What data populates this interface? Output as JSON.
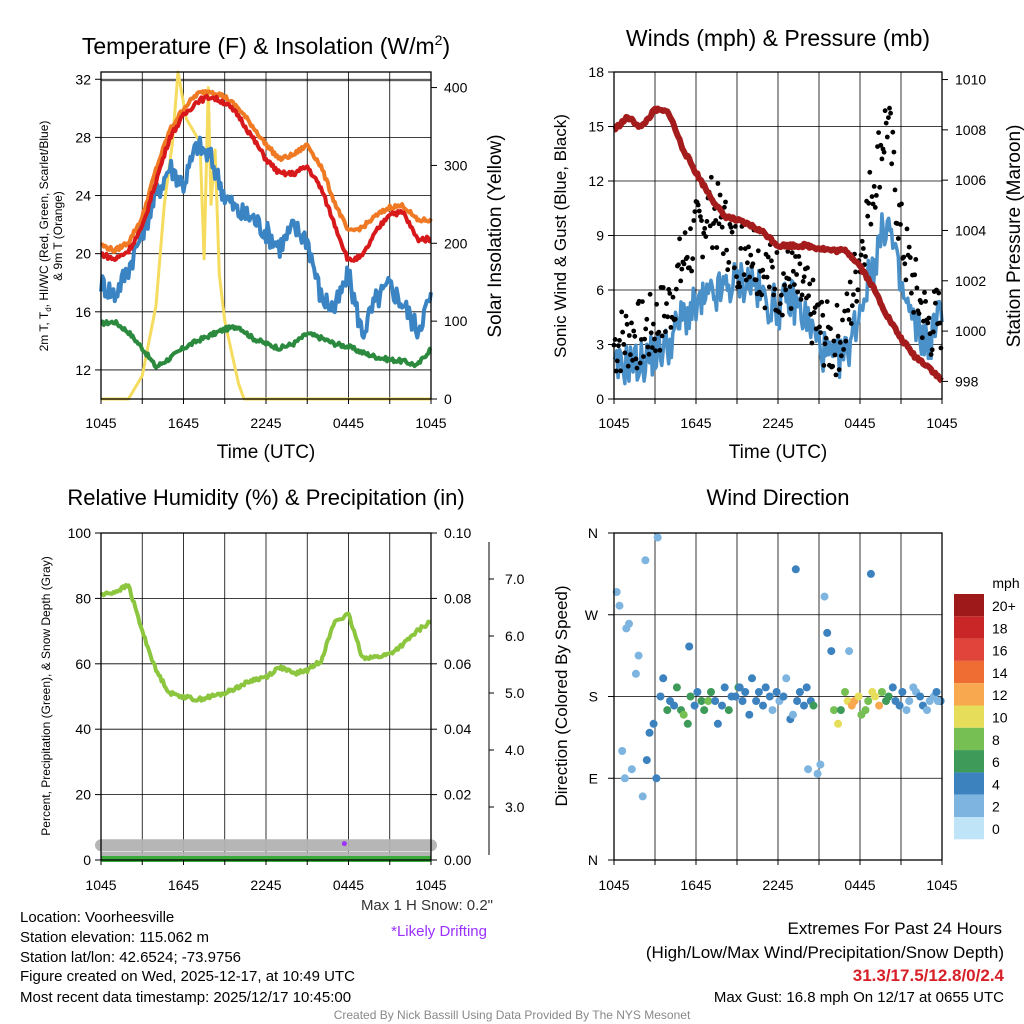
{
  "colors": {
    "temp_2m": "#d7191c",
    "dewpoint": "#2b8a3e",
    "wind_chill": "#3a84c4",
    "temp_9m": "#f07a24",
    "insolation": "#f5dc5e",
    "wind": "#4a90c9",
    "gust": "#000000",
    "pressure": "#a51c1c",
    "rh": "#8cc63f",
    "precip": "#3aab3a",
    "snow": "#b3b3b3",
    "drift": "#9b30ff",
    "extremes": "#d72027",
    "credit": "#888888"
  },
  "chart_data": [
    {
      "type": "line",
      "title": "Temperature (F) & Insolation (W/m²)",
      "title_main": "Temperature (F) & Insolation (W/m",
      "title_sup": "2",
      "title_end": ")",
      "xlabel": "Time (UTC)",
      "ylabel_lines": [
        "2m T, T",
        "d",
        ", HI/WC (Red, Green, Scarlet/Blue)",
        "& 9m T (Orange)"
      ],
      "y2label": "Solar Insolation (Yellow)",
      "x_ticks": [
        "1045",
        "1645",
        "2245",
        "0445",
        "1045"
      ],
      "ylim": [
        10,
        32.5
      ],
      "y_ticks": [
        "12",
        "16",
        "20",
        "24",
        "28",
        "32"
      ],
      "y2lim": [
        0,
        420
      ],
      "y2_ticks": [
        "0",
        "100",
        "200",
        "300",
        "400"
      ],
      "series": [
        {
          "name": "2m T",
          "color": "#d7191c",
          "x": [
            0,
            1,
            2,
            3,
            4,
            5,
            6,
            7,
            8,
            9,
            10,
            11,
            12,
            13,
            14,
            15,
            16,
            17,
            18,
            19,
            20,
            21,
            22,
            23,
            24
          ],
          "values": [
            20,
            19.6,
            20.2,
            21.8,
            25,
            28,
            29.5,
            30.5,
            30.8,
            30.4,
            29.5,
            28,
            26.5,
            25.5,
            25.5,
            26,
            24.5,
            22,
            19.5,
            19.8,
            21.5,
            22.8,
            22.8,
            21,
            21
          ]
        },
        {
          "name": "9m T",
          "color": "#f07a24",
          "x": [
            0,
            1,
            2,
            3,
            4,
            5,
            6,
            7,
            8,
            9,
            10,
            11,
            12,
            13,
            14,
            15,
            16,
            17,
            18,
            19,
            20,
            21,
            22,
            23,
            24
          ],
          "values": [
            20.6,
            20.2,
            20.8,
            22.5,
            25.8,
            28.5,
            30,
            31,
            31.2,
            30.8,
            30,
            28.8,
            27.5,
            26.5,
            26.8,
            27.5,
            26,
            23.5,
            21.5,
            21.8,
            22.6,
            23.2,
            23.3,
            22.3,
            22.3
          ]
        },
        {
          "name": "Dewpoint",
          "color": "#2b8a3e",
          "x": [
            0,
            1,
            2,
            3,
            4,
            5,
            6,
            7,
            8,
            9,
            10,
            11,
            12,
            13,
            14,
            15,
            16,
            17,
            18,
            19,
            20,
            21,
            22,
            23,
            24
          ],
          "values": [
            15.2,
            15.3,
            14.6,
            13.5,
            12.2,
            12.8,
            13.5,
            14,
            14.4,
            14.8,
            15,
            14.2,
            13.8,
            13.5,
            13.8,
            14.5,
            14.2,
            13.8,
            13.6,
            13.2,
            12.9,
            12.7,
            12.6,
            12.3,
            13.5
          ]
        },
        {
          "name": "HI/WC",
          "color": "#3a84c4",
          "x": [
            0,
            1,
            2,
            3,
            4,
            5,
            6,
            7,
            8,
            9,
            10,
            11,
            12,
            13,
            14,
            15,
            16,
            17,
            18,
            19,
            20,
            21,
            22,
            23,
            24
          ],
          "values": [
            18,
            17.2,
            19,
            21.5,
            24,
            26,
            24.8,
            27.5,
            26.5,
            24,
            22.8,
            22.5,
            21.5,
            20.5,
            21.8,
            21,
            17,
            16.2,
            18.5,
            14.5,
            16.8,
            17.8,
            16.5,
            14.8,
            17
          ]
        },
        {
          "name": "Insolation",
          "color": "#f5dc5e",
          "axis": "y2",
          "x": [
            0,
            1.5,
            2,
            3,
            4,
            4.6,
            5.2,
            5.6,
            6.2,
            7.2,
            7.5,
            7.8,
            8,
            8.3,
            8.6,
            9,
            9.5,
            10,
            10.4,
            24
          ],
          "values": [
            0,
            0,
            0,
            30,
            120,
            250,
            330,
            420,
            360,
            330,
            180,
            400,
            250,
            320,
            160,
            100,
            60,
            20,
            0,
            0
          ]
        }
      ]
    },
    {
      "type": "line",
      "title": "Winds (mph) & Pressure (mb)",
      "xlabel": "Time (UTC)",
      "ylabel": "Sonic Wind & Gust (Blue, Black)",
      "y2label": "Station Pressure (Maroon)",
      "x_ticks": [
        "1045",
        "1645",
        "2245",
        "0445",
        "1045"
      ],
      "ylim": [
        0,
        18
      ],
      "y_ticks": [
        "0",
        "3",
        "6",
        "9",
        "12",
        "15",
        "18"
      ],
      "y2lim": [
        997.3,
        1010.3
      ],
      "y2_ticks": [
        "998",
        "1000",
        "1002",
        "1004",
        "1006",
        "1008",
        "1010"
      ],
      "series": [
        {
          "name": "Sonic Wind",
          "color": "#4a90c9",
          "x": [
            0,
            1,
            2,
            3,
            4,
            5,
            6,
            7,
            8,
            9,
            10,
            11,
            12,
            13,
            14,
            15,
            16,
            17,
            18,
            19,
            20,
            21,
            22,
            23,
            24
          ],
          "values": [
            1.5,
            2,
            2,
            2.5,
            3,
            4.5,
            5,
            5.5,
            6,
            6.5,
            6.5,
            5.5,
            5,
            5.5,
            4.5,
            3,
            2,
            2.5,
            5,
            7.5,
            10,
            6,
            4,
            3,
            5
          ]
        },
        {
          "name": "Gust",
          "color": "#000000",
          "markers": true,
          "x": [
            0,
            1,
            2,
            3,
            4,
            5,
            6,
            7,
            8,
            9,
            10,
            11,
            12,
            13,
            14,
            15,
            16,
            17,
            18,
            19,
            20,
            21,
            22,
            23,
            24
          ],
          "values": [
            3,
            3.5,
            3.5,
            4,
            5,
            7.5,
            9,
            10.5,
            9.5,
            8,
            8.5,
            7,
            6.5,
            6.5,
            5.5,
            4,
            3,
            4,
            8,
            12,
            15.5,
            9,
            6,
            4,
            4.5
          ]
        },
        {
          "name": "Pressure",
          "color": "#a51c1c",
          "axis": "y2",
          "x": [
            0,
            1,
            2,
            3,
            4,
            5,
            6,
            7,
            8,
            9,
            10,
            11,
            12,
            13,
            14,
            15,
            16,
            17,
            18,
            19,
            20,
            21,
            22,
            23,
            24
          ],
          "values": [
            1008,
            1008.5,
            1008.1,
            1008.8,
            1008.7,
            1007.3,
            1006.3,
            1005.4,
            1004.6,
            1004.4,
            1004.2,
            1003.9,
            1003.4,
            1003.4,
            1003.4,
            1003.3,
            1003.2,
            1003.2,
            1002.6,
            1001.7,
            1000.6,
            999.7,
            999,
            998.6,
            998
          ]
        }
      ]
    },
    {
      "type": "line",
      "title": "Relative Humidity (%) & Precipitation (in)",
      "ylabel": "Percent, Precipitation (Green), & Snow Depth (Gray)",
      "x_ticks": [
        "1045",
        "1645",
        "2245",
        "0445",
        "1045"
      ],
      "ylim": [
        0,
        100
      ],
      "y_ticks": [
        "0",
        "20",
        "40",
        "60",
        "80",
        "100"
      ],
      "y2lim": [
        0,
        0.1
      ],
      "y2_ticks": [
        "0.00",
        "0.02",
        "0.04",
        "0.06",
        "0.08",
        "0.10"
      ],
      "y3_ticks": [
        "3.0",
        "4.0",
        "5.0",
        "6.0",
        "7.0"
      ],
      "note_snow": "Max 1 H Snow: 0.2\"",
      "note_drift": "*Likely Drifting",
      "series": [
        {
          "name": "RH",
          "color": "#8cc63f",
          "x": [
            0,
            1,
            2,
            3,
            4,
            5,
            6,
            7,
            8,
            9,
            10,
            11,
            12,
            13,
            14,
            15,
            16,
            17,
            18,
            19,
            20,
            21,
            22,
            23,
            24
          ],
          "values": [
            81,
            82,
            84,
            70,
            58,
            51,
            50,
            49,
            50,
            51,
            53,
            55,
            56,
            59,
            57,
            58,
            61,
            73,
            75,
            62,
            62,
            63,
            66,
            70,
            73
          ]
        },
        {
          "name": "Precipitation",
          "color": "#3aab3a",
          "axis": "y2",
          "x": [
            0,
            24
          ],
          "values": [
            0,
            0
          ]
        },
        {
          "name": "Snow Depth",
          "color": "#b3b3b3",
          "x": [
            0,
            24
          ],
          "values": [
            1.9,
            1.9
          ]
        },
        {
          "name": "Drifting",
          "color": "#9b30ff",
          "x": [
            17.7
          ],
          "values": [
            1.8
          ]
        }
      ]
    },
    {
      "type": "scatter",
      "title": "Wind Direction",
      "ylabel": "Direction (Colored By Speed)",
      "x_ticks": [
        "1045",
        "1645",
        "2245",
        "0445",
        "1045"
      ],
      "y_ticks": [
        "N",
        "E",
        "S",
        "W",
        "N"
      ],
      "ylim": [
        0,
        360
      ],
      "legend_title": "mph",
      "legend_labels": [
        "20+",
        "18",
        "16",
        "14",
        "12",
        "10",
        "8",
        "6",
        "4",
        "2",
        "0"
      ],
      "legend_colors": [
        "#9e1a1a",
        "#c92727",
        "#e0443a",
        "#ef6c32",
        "#f8a84e",
        "#e6de5b",
        "#76bf53",
        "#3d9a58",
        "#3b82bf",
        "#7db5e0",
        "#bfe3f7"
      ],
      "x": [
        0.2,
        0.4,
        0.6,
        0.8,
        1.1,
        1.3,
        1.6,
        1.8,
        2.1,
        2.4,
        2.6,
        2.9,
        3.1,
        3.4,
        3.6,
        3.9,
        4.1,
        4.4,
        4.6,
        4.9,
        5.1,
        5.4,
        5.6,
        5.9,
        6.1,
        6.4,
        6.6,
        6.9,
        7.1,
        7.4,
        7.6,
        7.9,
        8.1,
        8.4,
        8.6,
        8.9,
        9.1,
        9.4,
        9.6,
        9.9,
        10.1,
        10.4,
        10.6,
        10.9,
        11.1,
        11.4,
        11.6,
        11.9,
        12.1,
        12.4,
        12.6,
        12.9,
        13.1,
        13.4,
        13.6,
        13.9,
        14.1,
        14.4,
        14.6,
        14.9,
        15.1,
        15.4,
        15.6,
        15.9,
        16.1,
        16.4,
        16.6,
        16.9,
        17.1,
        17.4,
        17.6,
        17.9,
        18.1,
        18.4,
        18.6,
        18.9,
        19.1,
        19.4,
        19.6,
        19.9,
        20.1,
        20.4,
        20.6,
        20.9,
        21.1,
        21.4,
        21.6,
        21.9,
        22.1,
        22.4,
        22.6,
        22.9,
        23.1,
        23.4,
        23.6,
        23.9,
        0.9,
        2.3,
        3.2,
        5.5,
        9.2,
        13.3,
        14.2,
        17.2,
        18.8,
        23.7
      ],
      "values": [
        295,
        280,
        120,
        90,
        260,
        100,
        205,
        225,
        70,
        110,
        140,
        150,
        90,
        180,
        200,
        165,
        175,
        170,
        190,
        165,
        160,
        150,
        180,
        170,
        185,
        175,
        165,
        175,
        185,
        175,
        150,
        170,
        190,
        165,
        180,
        180,
        190,
        175,
        185,
        160,
        200,
        175,
        185,
        170,
        190,
        180,
        165,
        185,
        175,
        180,
        200,
        155,
        160,
        175,
        185,
        170,
        190,
        175,
        170,
        95,
        105,
        290,
        250,
        230,
        165,
        150,
        165,
        185,
        175,
        170,
        175,
        180,
        160,
        165,
        175,
        185,
        180,
        170,
        185,
        175,
        180,
        190,
        175,
        170,
        185,
        165,
        175,
        190,
        185,
        180,
        170,
        165,
        175,
        180,
        185,
        175,
        255,
        330,
        355,
        235,
        190,
        320,
        100,
        230,
        315,
        175
      ],
      "speeds": [
        1,
        2,
        1,
        1,
        1,
        1,
        2,
        2,
        2,
        3,
        3,
        3,
        4,
        4,
        4,
        5,
        3,
        4,
        5,
        6,
        7,
        6,
        5,
        4,
        4,
        5,
        6,
        7,
        5,
        4,
        3,
        4,
        4,
        5,
        4,
        4,
        5,
        4,
        4,
        3,
        4,
        3,
        4,
        3,
        4,
        3,
        2,
        3,
        2,
        3,
        2,
        3,
        2,
        3,
        4,
        4,
        3,
        4,
        5,
        1,
        1,
        2,
        3,
        4,
        8,
        9,
        6,
        7,
        10,
        12,
        11,
        9,
        8,
        7,
        8,
        9,
        10,
        11,
        8,
        6,
        5,
        4,
        3,
        4,
        3,
        2,
        2,
        1,
        2,
        3,
        4,
        2,
        1,
        2,
        3,
        4,
        2,
        1,
        2,
        3,
        3,
        4,
        2,
        2,
        3,
        1
      ]
    }
  ],
  "info": {
    "location": "Location: Voorheesville",
    "elevation": "Station elevation: 115.062 m",
    "latlon": "Station lat/lon: 42.6524; -73.9756",
    "created": "Figure created on Wed, 2025-12-17, at 10:49 UTC",
    "recent": "Most recent data timestamp: 2025/12/17 10:45:00"
  },
  "extremes": {
    "title": "Extremes For Past 24 Hours",
    "subtitle": "(High/Low/Max Wind/Precipitation/Snow Depth)",
    "values": "31.3/17.5/12.8/0/2.4",
    "gust": "Max Gust: 16.8 mph On 12/17 at 0655 UTC"
  },
  "credit": "Created By Nick Bassill Using Data Provided By The NYS Mesonet"
}
